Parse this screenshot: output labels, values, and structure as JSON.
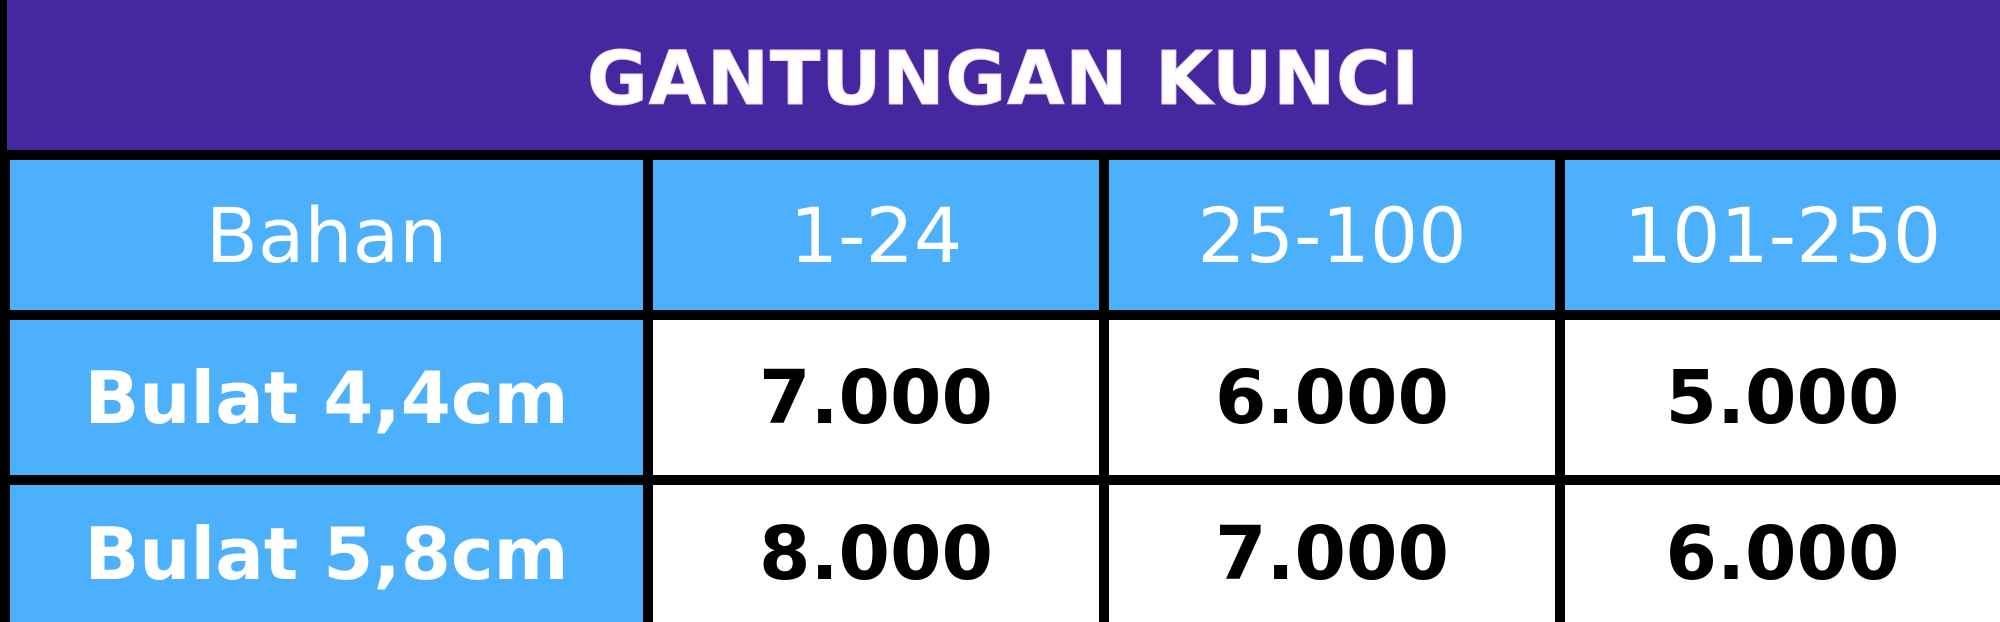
{
  "title": "GANTUNGAN KUNCI",
  "columns": [
    "Bahan",
    "1-24",
    "25-100",
    "101-250"
  ],
  "rows": [
    {
      "material": "Bulat 4,4cm",
      "prices": [
        "7.000",
        "6.000",
        "5.000"
      ]
    },
    {
      "material": "Bulat 5,8cm",
      "prices": [
        "8.000",
        "7.000",
        "6.000"
      ]
    }
  ],
  "colors": {
    "title_background": "#4527a0",
    "header_background": "#4db0fc",
    "value_background": "#ffffff",
    "grid_lines": "#000000"
  }
}
